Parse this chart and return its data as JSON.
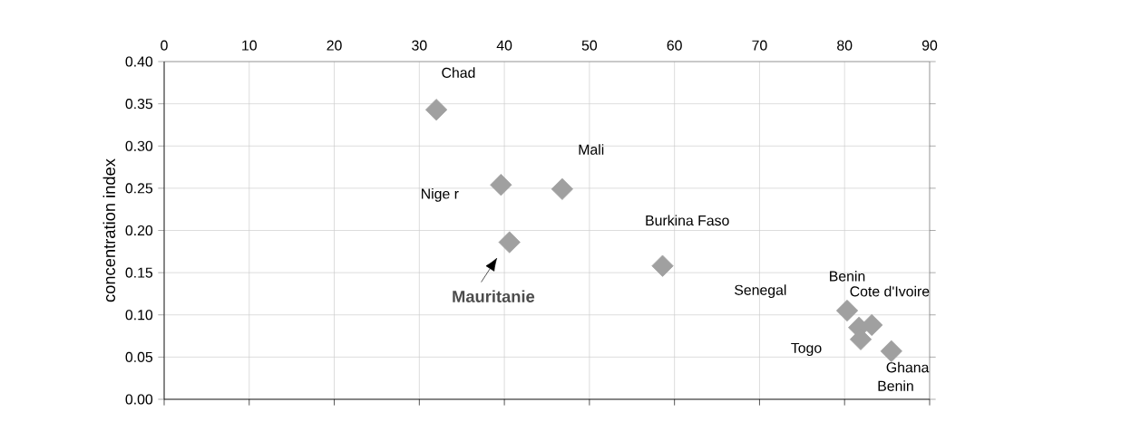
{
  "chart_data": {
    "type": "scatter",
    "ylabel": "concentration index",
    "x": [
      32.0,
      39.6,
      46.8,
      40.6,
      58.6,
      80.3,
      81.7,
      83.2,
      81.9,
      85.5
    ],
    "values": [
      0.343,
      0.254,
      0.249,
      0.186,
      0.158,
      0.105,
      0.085,
      0.088,
      0.071,
      0.057
    ],
    "color": "#a0a0a0",
    "marker": "diamond",
    "grid": true,
    "xlim": [
      0,
      90
    ],
    "xticks": [
      0,
      10,
      20,
      30,
      40,
      50,
      60,
      70,
      80,
      90
    ],
    "ylim": [
      0,
      0.4
    ],
    "yticks": [
      {
        "value": 0,
        "label": "0.00"
      },
      {
        "value": 0.05,
        "label": "0.05"
      },
      {
        "value": 0.1,
        "label": "0.10"
      },
      {
        "value": 0.15,
        "label": "0.15"
      },
      {
        "value": 0.2,
        "label": "0.20"
      },
      {
        "value": 0.25,
        "label": "0.25"
      },
      {
        "value": 0.3,
        "label": "0.30"
      },
      {
        "value": 0.35,
        "label": "0.35"
      },
      {
        "value": 0.4,
        "label": "0.40"
      }
    ],
    "annotations": [
      "Chad",
      "Nige r",
      "Mali",
      "Mauritanie",
      "Burkina Faso",
      "Senegal",
      "Benin",
      "Cote d'Ivoire",
      "Togo",
      "Ghana",
      "Benin"
    ]
  }
}
